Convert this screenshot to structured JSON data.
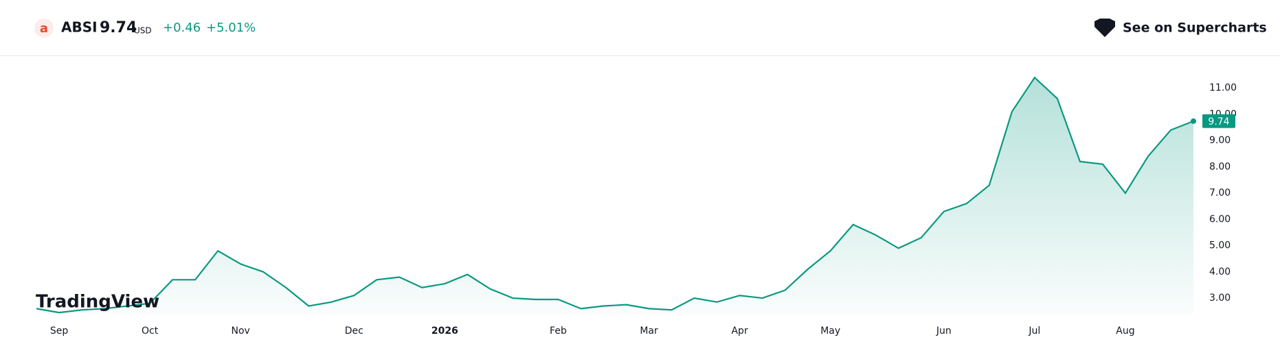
{
  "header": {
    "symbol": "ABSI",
    "price": "9.74",
    "currency": "USD",
    "change": "+0.46",
    "change_percent": "+5.01%",
    "button": "See on Supercharts"
  },
  "watermark": "TradingView",
  "chart_data": {
    "type": "area",
    "color": "#089981",
    "categories": [
      null,
      "Sep",
      null,
      null,
      null,
      "Oct",
      null,
      null,
      null,
      "Nov",
      null,
      null,
      null,
      null,
      "Dec",
      null,
      null,
      null,
      "2026",
      null,
      null,
      null,
      null,
      "Feb",
      null,
      null,
      null,
      "Mar",
      null,
      null,
      null,
      "Apr",
      null,
      null,
      null,
      "May",
      null,
      null,
      null,
      null,
      "Jun",
      null,
      null,
      null,
      "Jul",
      null,
      null,
      null,
      "Aug",
      null,
      null,
      null
    ],
    "values": [
      2.6,
      2.45,
      2.55,
      2.6,
      2.7,
      2.8,
      3.7,
      3.7,
      4.8,
      4.3,
      4.0,
      3.4,
      2.7,
      2.85,
      3.1,
      3.7,
      3.8,
      3.4,
      3.55,
      3.9,
      3.35,
      3.0,
      2.95,
      2.95,
      2.6,
      2.7,
      2.75,
      2.6,
      2.55,
      3.0,
      2.85,
      3.1,
      3.0,
      3.3,
      4.1,
      4.8,
      5.8,
      5.4,
      4.9,
      5.3,
      6.3,
      6.6,
      7.3,
      10.1,
      11.4,
      10.6,
      8.2,
      8.1,
      7.0,
      8.4,
      9.4,
      9.74
    ],
    "last_value_label": "9.74",
    "ylim": [
      2.4,
      12
    ],
    "yticks": [
      {
        "value": 3,
        "label": "3.00"
      },
      {
        "value": 4,
        "label": "4.00"
      },
      {
        "value": 5,
        "label": "5.00"
      },
      {
        "value": 6,
        "label": "6.00"
      },
      {
        "value": 7,
        "label": "7.00"
      },
      {
        "value": 8,
        "label": "8.00"
      },
      {
        "value": 9,
        "label": "9.00"
      },
      {
        "value": 10,
        "label": "10.00"
      },
      {
        "value": 11,
        "label": "11.00"
      }
    ]
  }
}
